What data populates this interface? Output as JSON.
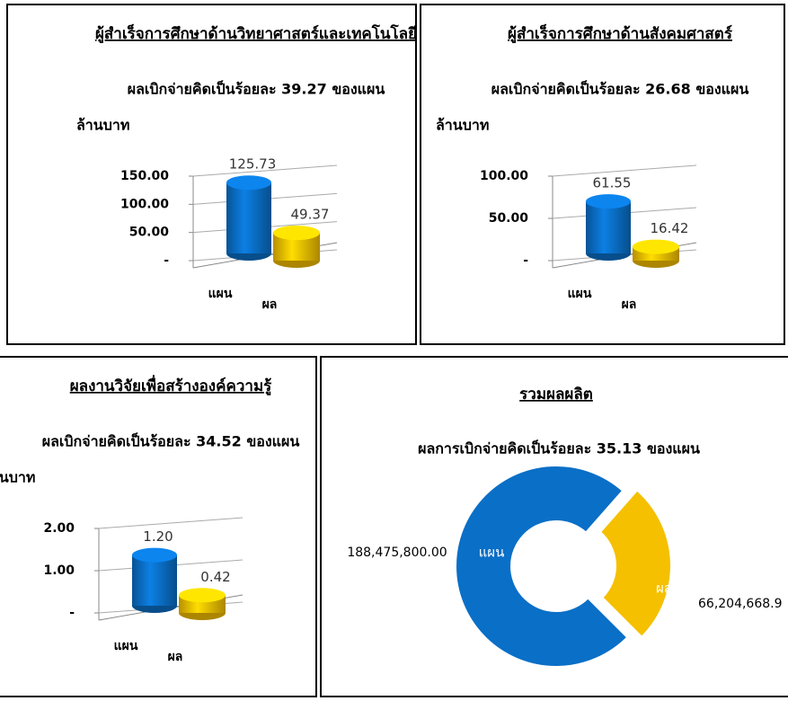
{
  "chart_data": [
    {
      "type": "bar",
      "title": "ผู้สำเร็จการศึกษาด้านวิทยาศาสตร์และเทคโนโลยี",
      "subtitle": "ผลเบิกจ่ายคิดเป็นร้อยละ 39.27 ของแผน",
      "y_label": "ล้านบาท",
      "categories": [
        "แผน",
        "ผล"
      ],
      "values": [
        125.73,
        49.37
      ],
      "value_labels": [
        "125.73",
        "49.37"
      ],
      "colors": [
        "#0a6fc7",
        "#f5c000"
      ],
      "ylim": [
        0,
        150
      ],
      "yticks": [
        {
          "value": 0,
          "label": "-"
        },
        {
          "value": 50,
          "label": "50.00"
        },
        {
          "value": 100,
          "label": "100.00"
        },
        {
          "value": 150,
          "label": "150.00"
        }
      ],
      "grid": true
    },
    {
      "type": "bar",
      "title": "ผู้สำเร็จการศึกษาด้านสังคมศาสตร์",
      "subtitle": "ผลเบิกจ่ายคิดเป็นร้อยละ 26.68 ของแผน",
      "y_label": "ล้านบาท",
      "categories": [
        "แผน",
        "ผล"
      ],
      "values": [
        61.55,
        16.42
      ],
      "value_labels": [
        "61.55",
        "16.42"
      ],
      "colors": [
        "#0a6fc7",
        "#f5c000"
      ],
      "ylim": [
        0,
        100
      ],
      "yticks": [
        {
          "value": 0,
          "label": "-"
        },
        {
          "value": 50,
          "label": "50.00"
        },
        {
          "value": 100,
          "label": "100.00"
        }
      ],
      "grid": true
    },
    {
      "type": "bar",
      "title": "ผลงานวิจัยเพื่อสร้างองค์ความรู้",
      "subtitle": "ผลเบิกจ่ายคิดเป็นร้อยละ 34.52 ของแผน",
      "y_label": "ล้านบาท",
      "categories": [
        "แผน",
        "ผล"
      ],
      "values": [
        1.2,
        0.42
      ],
      "value_labels": [
        "1.20",
        "0.42"
      ],
      "colors": [
        "#0a6fc7",
        "#f5c000"
      ],
      "ylim": [
        0,
        2
      ],
      "yticks": [
        {
          "value": 0,
          "label": "-"
        },
        {
          "value": 1,
          "label": "1.00"
        },
        {
          "value": 2,
          "label": "2.00"
        }
      ],
      "grid": true
    },
    {
      "type": "pie",
      "title": "รวมผลผลิต",
      "subtitle": "ผลการเบิกจ่ายคิดเป็นร้อยละ 35.13 ของแผน",
      "categories": [
        "แผน",
        "ผล"
      ],
      "values": [
        188475800,
        66204668.9
      ],
      "value_labels": [
        "188,475,800.00",
        "66,204,668.9"
      ],
      "colors": [
        "#0a6fc7",
        "#f5c000"
      ]
    }
  ]
}
